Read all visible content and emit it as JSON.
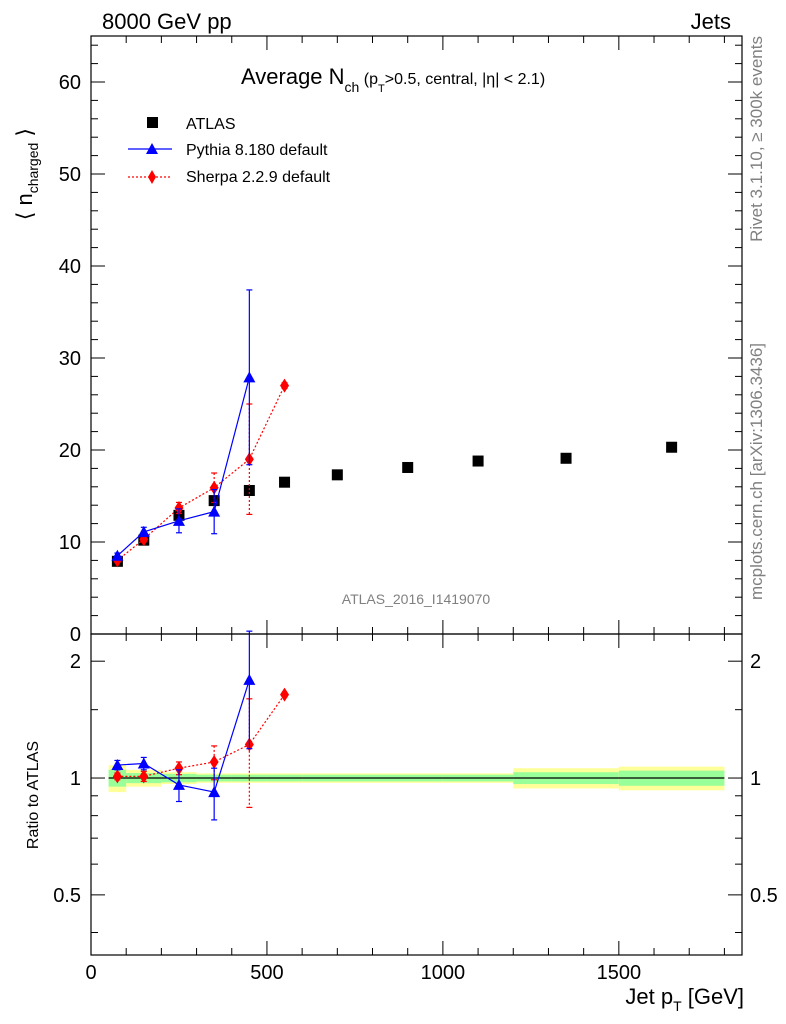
{
  "header": {
    "left": "8000 GeV pp",
    "right": "Jets"
  },
  "side": {
    "rivet": "Rivet 3.1.10, ≥ 300k events",
    "mcplots": "mcplots.cern.ch [arXiv:1306.3436]"
  },
  "watermark": "ATLAS_2016_I1419070",
  "title": {
    "main": "Average N",
    "sub": "ch",
    "rest1": " (p",
    "rest_sub": "T",
    "rest2": ">0.5, central, |η| < 2.1)"
  },
  "ylabel_main": {
    "pre": "⟨ n",
    "sub": "charged",
    "post": " ⟩"
  },
  "ylabel_ratio": "Ratio to ATLAS",
  "xlabel": {
    "pre": "Jet p",
    "sub": "T",
    "post": " [GeV]"
  },
  "colors": {
    "atlas": "#000000",
    "pythia": "#0000ff",
    "sherpa": "#ff0000",
    "band_inner": "#99ff99",
    "band_outer": "#ffff99"
  },
  "chart_data": {
    "type": "scatter",
    "x_range": [
      0,
      1850
    ],
    "main_ylim": [
      0,
      65
    ],
    "ratio_ylim": [
      0.35,
      2.35
    ],
    "ratio_log": true,
    "x_ticks": [
      "0",
      "500",
      "1000",
      "1500"
    ],
    "x_tick_values": [
      0,
      500,
      1000,
      1500
    ],
    "main_y_ticks": [
      "0",
      "10",
      "20",
      "30",
      "40",
      "50",
      "60"
    ],
    "main_y_tick_values": [
      0,
      10,
      20,
      30,
      40,
      50,
      60
    ],
    "ratio_y_ticks": [
      "0.5",
      "1",
      "2"
    ],
    "ratio_y_tick_values": [
      0.5,
      1,
      2
    ],
    "legend_position": "top-left",
    "series": [
      {
        "name": "ATLAS",
        "marker": "square",
        "x": [
          75,
          150,
          250,
          350,
          450,
          550,
          700,
          900,
          1100,
          1350,
          1650
        ],
        "y": [
          7.9,
          10.2,
          12.9,
          14.5,
          15.6,
          16.5,
          17.3,
          18.1,
          18.8,
          19.1,
          20.3
        ],
        "xerr_low": [
          25,
          50,
          50,
          50,
          50,
          50,
          100,
          100,
          100,
          150,
          150
        ],
        "xerr_high": [
          25,
          50,
          50,
          50,
          50,
          50,
          100,
          100,
          100,
          150,
          150
        ],
        "ratio_band_inner": [
          0.05,
          0.03,
          0.025,
          0.02,
          0.02,
          0.02,
          0.02,
          0.02,
          0.02,
          0.035,
          0.045
        ],
        "ratio_band_outer": [
          0.08,
          0.05,
          0.035,
          0.028,
          0.028,
          0.028,
          0.028,
          0.028,
          0.028,
          0.06,
          0.07
        ]
      },
      {
        "name": "Pythia 8.180 default",
        "marker": "triangle",
        "line": "solid",
        "x": [
          75,
          150,
          250,
          350,
          450
        ],
        "y": [
          8.5,
          11.1,
          12.3,
          13.3,
          27.9
        ],
        "yerr": [
          0.3,
          0.5,
          1.3,
          2.4,
          9.5
        ],
        "ratio": [
          1.08,
          1.09,
          0.96,
          0.92,
          1.79
        ],
        "ratio_err": [
          0.03,
          0.04,
          0.09,
          0.14,
          0.6
        ]
      },
      {
        "name": "Sherpa 2.2.9 default",
        "marker": "diamond",
        "line": "dotted",
        "x": [
          75,
          150,
          250,
          350,
          450,
          550
        ],
        "y": [
          8.0,
          10.3,
          13.7,
          15.9,
          19.0,
          27.0
        ],
        "yerr": [
          0.2,
          0.3,
          0.6,
          1.6,
          6.0,
          0.3
        ],
        "ratio": [
          1.01,
          1.01,
          1.06,
          1.1,
          1.22,
          1.64
        ],
        "ratio_err": [
          0.02,
          0.03,
          0.04,
          0.11,
          0.38,
          0.02
        ]
      }
    ]
  }
}
